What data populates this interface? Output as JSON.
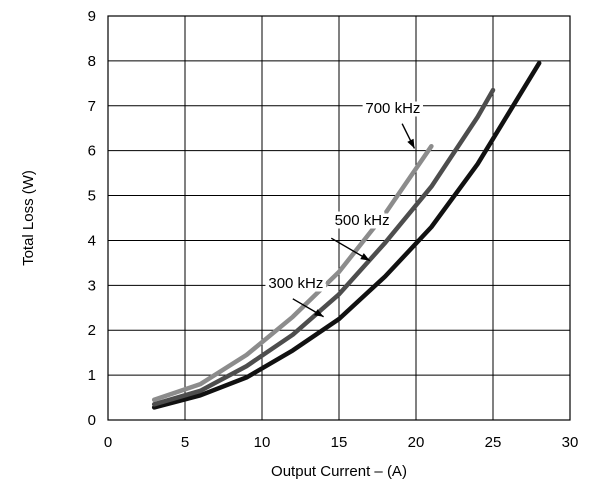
{
  "chart_data": {
    "type": "line",
    "title": "",
    "xlabel": "Output Current – (A)",
    "ylabel": "Total Loss (W)",
    "xlim": [
      0,
      30
    ],
    "ylim": [
      0,
      9
    ],
    "xticks": [
      0,
      5,
      10,
      15,
      20,
      25,
      30
    ],
    "yticks": [
      0,
      1,
      2,
      3,
      4,
      5,
      6,
      7,
      8,
      9
    ],
    "grid": true,
    "legend": "none",
    "series": [
      {
        "color": "#111111",
        "x": [
          3,
          6,
          9,
          12,
          15,
          18,
          21,
          24,
          28
        ],
        "y": [
          0.28,
          0.55,
          0.95,
          1.55,
          2.25,
          3.2,
          4.3,
          5.7,
          7.95
        ]
      },
      {
        "color": "#4d4d4d",
        "x": [
          3,
          6,
          9,
          12,
          15,
          18,
          21,
          24,
          25
        ],
        "y": [
          0.35,
          0.65,
          1.2,
          1.9,
          2.8,
          3.95,
          5.2,
          6.75,
          7.35
        ]
      },
      {
        "color": "#8c8c8c",
        "x": [
          3,
          6,
          9,
          12,
          15,
          18,
          21
        ],
        "y": [
          0.45,
          0.8,
          1.45,
          2.3,
          3.3,
          4.6,
          6.1
        ]
      }
    ],
    "annotations": [
      {
        "text": "700 kHz",
        "series": 2,
        "text_x": 18.5,
        "text_y": 6.95,
        "arrow_from": [
          19.1,
          6.6
        ],
        "arrow_to": [
          19.9,
          6.05
        ]
      },
      {
        "text": "500 kHz",
        "series": 1,
        "text_x": 16.5,
        "text_y": 4.45,
        "arrow_from": [
          14.5,
          4.05
        ],
        "arrow_to": [
          17.0,
          3.55
        ]
      },
      {
        "text": "300 kHz",
        "series": 0,
        "text_x": 12.2,
        "text_y": 3.05,
        "arrow_from": [
          12.0,
          2.7
        ],
        "arrow_to": [
          14.0,
          2.3
        ]
      }
    ]
  }
}
